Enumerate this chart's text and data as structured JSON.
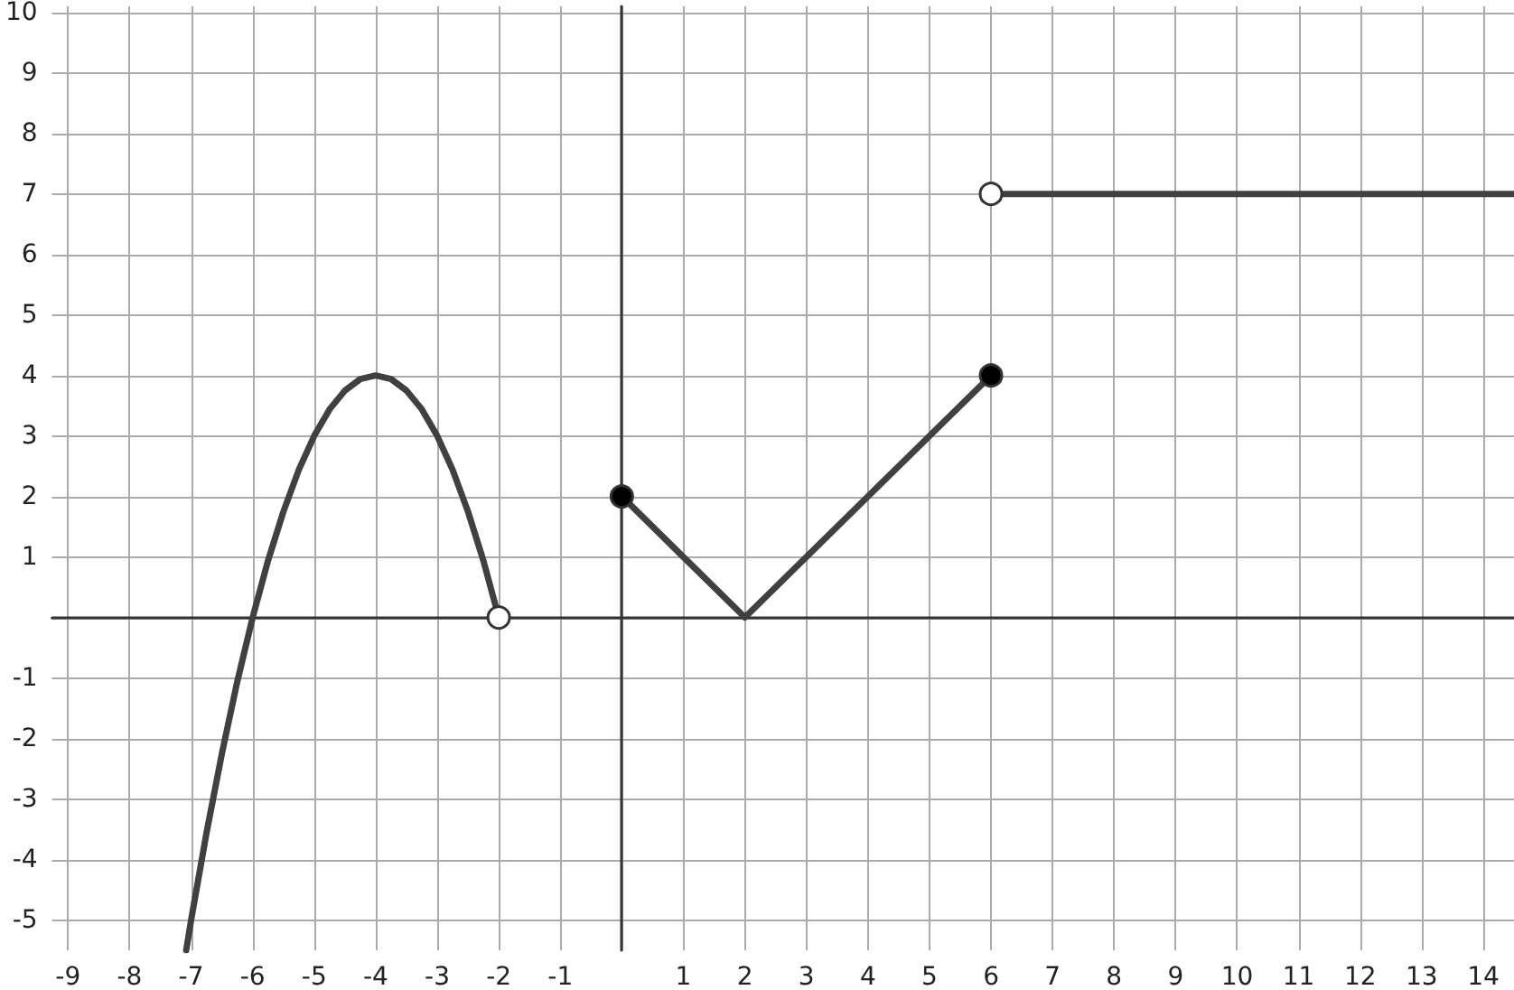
{
  "chart_data": {
    "type": "line",
    "xlim": [
      -9.26,
      14.5
    ],
    "ylim": [
      -5.5,
      10.1
    ],
    "xticks": [
      -9,
      -8,
      -7,
      -6,
      -5,
      -4,
      -3,
      -2,
      -1,
      {
        "value": 0,
        "label": null
      },
      1,
      2,
      3,
      4,
      5,
      6,
      7,
      8,
      9,
      10,
      11,
      12,
      13,
      14
    ],
    "yticks": [
      -5,
      -4,
      -3,
      -2,
      -1,
      {
        "value": 0,
        "label": null
      },
      1,
      2,
      3,
      4,
      5,
      6,
      7,
      8,
      9,
      10
    ],
    "grid": true,
    "series": [
      {
        "color": "#404040",
        "marker": "none",
        "x": [
          -7.08,
          -7,
          -6.75,
          -6.5,
          -6.25,
          -6,
          -5.75,
          -5.5,
          -5.25,
          -5,
          -4.75,
          -4.5,
          -4.25,
          -4,
          -3.75,
          -3.5,
          -3.25,
          -3,
          -2.75,
          -2.5,
          -2.25,
          -2
        ],
        "values": [
          -5.5,
          -5,
          -3.56,
          -2.25,
          -1.06,
          0,
          0.94,
          1.75,
          2.44,
          3,
          3.44,
          3.75,
          3.94,
          4,
          3.94,
          3.75,
          3.44,
          3,
          2.44,
          1.75,
          0.94,
          0
        ]
      },
      {
        "color": "#404040",
        "marker": "none",
        "x": [
          0,
          2,
          6
        ],
        "values": [
          2,
          0,
          4
        ]
      },
      {
        "color": "#404040",
        "marker": "none",
        "x": [
          6,
          14.5
        ],
        "values": [
          7,
          7
        ]
      },
      {
        "type": "scatter",
        "color": "#000000",
        "marker": "circle",
        "x": [
          0,
          6
        ],
        "values": [
          2,
          4
        ]
      },
      {
        "type": "scatter",
        "color": "#ffffff",
        "marker": "circle",
        "x": [
          -2,
          6
        ],
        "values": [
          0,
          7
        ]
      }
    ]
  }
}
